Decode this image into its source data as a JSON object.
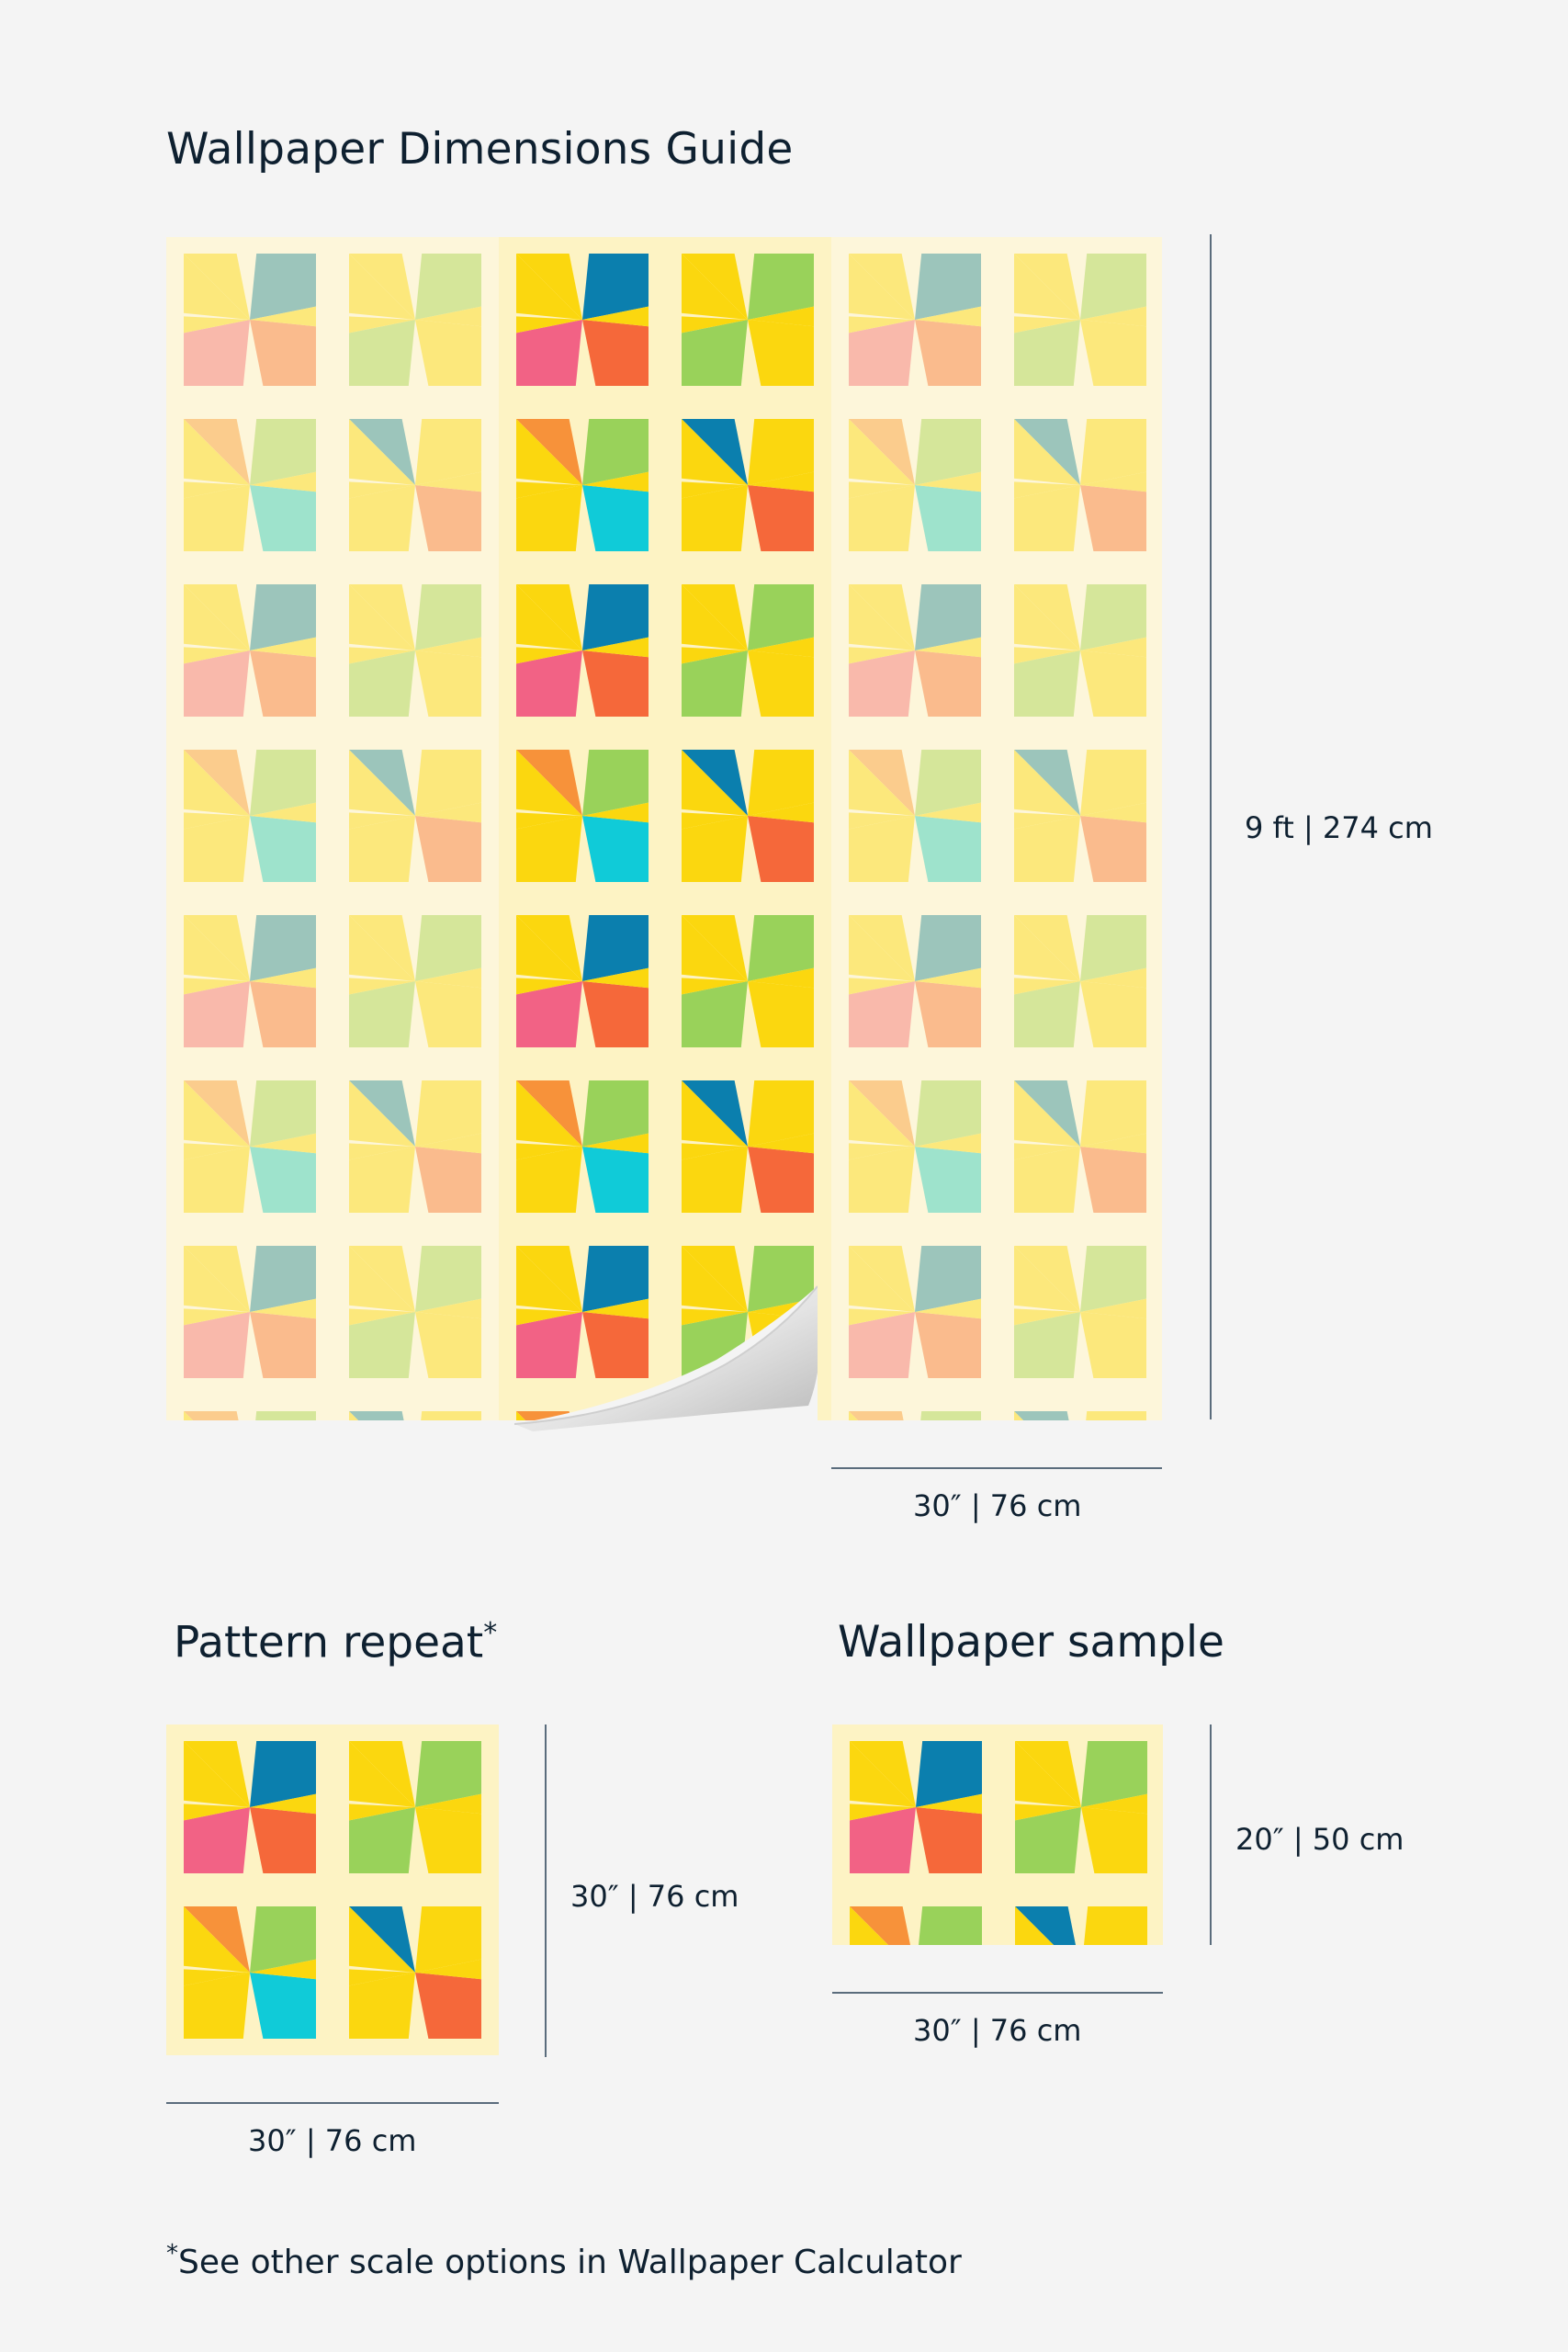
{
  "title": "Wallpaper Dimensions Guide",
  "room_height_label": "9 ft | 274 cm",
  "panel_width_label": "30″ | 76 cm",
  "pattern_repeat": {
    "heading": "Pattern repeat",
    "asterisk": "*",
    "height_label": "30″ | 76 cm",
    "width_label": "30″ | 76 cm"
  },
  "wallpaper_sample": {
    "heading": "Wallpaper sample",
    "height_label": "20″ | 50 cm",
    "width_label": "30″ | 76 cm"
  },
  "footnote": {
    "asterisk": "*",
    "text": "See other scale options in Wallpaper Calculator"
  },
  "colors": {
    "background": "#f4f4f4",
    "panel_cream": "#fdf3c4",
    "yellow": "#fbd70f",
    "blue": "#0b7fae",
    "orange_red": "#f5683a",
    "pink": "#f26285",
    "green": "#99d25a",
    "orange": "#f7923a",
    "cyan": "#10cbd8",
    "text": "#0e2030"
  }
}
